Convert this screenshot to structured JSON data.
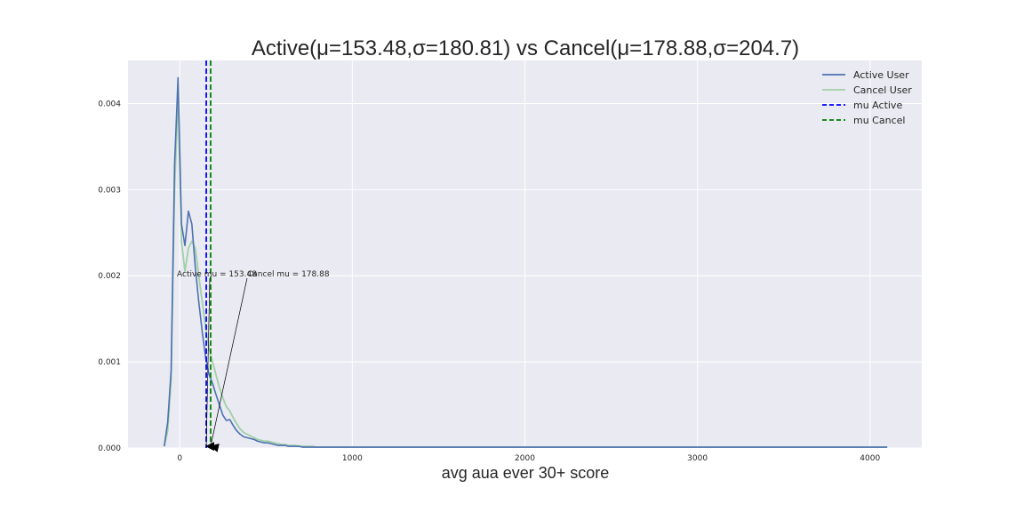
{
  "chart_data": {
    "type": "line",
    "title": "Active(μ=153.48,σ=180.81) vs Cancel(μ=178.88,σ=204.7)",
    "xlabel": "avg aua ever 30+ score",
    "ylabel": "",
    "xlim": [
      -300,
      4300
    ],
    "ylim": [
      0,
      0.0045
    ],
    "xticks": [
      0,
      1000,
      2000,
      3000,
      4000
    ],
    "xtick_labels": [
      "0",
      "1000",
      "2000",
      "3000",
      "4000"
    ],
    "yticks": [
      0,
      0.001,
      0.002,
      0.003,
      0.004
    ],
    "ytick_labels": [
      "0.000",
      "0.001",
      "0.002",
      "0.003",
      "0.004"
    ],
    "grid": true,
    "legend_position": "top-right",
    "colors": {
      "background": "#eaeaf2",
      "grid": "#ffffff",
      "active": "#4c72b0",
      "cancel": "#a1cfa7",
      "mu_active": "#0000ff",
      "mu_cancel": "#008000"
    },
    "series": [
      {
        "name": "Active User",
        "x": [
          -90,
          -70,
          -50,
          -30,
          -10,
          10,
          30,
          50,
          70,
          90,
          110,
          130,
          150,
          170,
          190,
          210,
          230,
          250,
          270,
          290,
          310,
          330,
          350,
          370,
          390,
          410,
          430,
          450,
          470,
          490,
          510,
          530,
          550,
          570,
          590,
          610,
          630,
          650,
          670,
          690,
          710,
          730,
          750,
          770,
          790,
          810,
          830,
          850,
          870,
          890,
          910,
          930,
          950,
          970,
          990,
          1010,
          1030,
          1050,
          1070,
          1090,
          1110,
          1150,
          1200,
          1250,
          1300,
          1350,
          1400,
          1500,
          1600,
          1800,
          2000,
          2500,
          3000,
          3500,
          4000,
          4100
        ],
        "values": [
          2e-05,
          0.0003,
          0.0009,
          0.0033,
          0.0043,
          0.0026,
          0.00235,
          0.00275,
          0.0026,
          0.0021,
          0.0017,
          0.00135,
          0.00105,
          0.00085,
          0.00075,
          0.00062,
          0.0005,
          0.00038,
          0.00032,
          0.00033,
          0.00026,
          0.0002,
          0.00016,
          0.00013,
          0.00012,
          0.00011,
          0.0001,
          8e-05,
          7e-05,
          6e-05,
          6e-05,
          5e-05,
          4e-05,
          3e-05,
          3e-05,
          3e-05,
          2e-05,
          2e-05,
          2e-05,
          2e-05,
          1e-05,
          1e-05,
          1e-05,
          1e-05,
          1e-05,
          1e-05,
          1e-05,
          1e-05,
          1e-05,
          1e-05,
          1e-05,
          1e-05,
          1e-05,
          1e-05,
          1e-05,
          1e-05,
          1e-05,
          1e-05,
          1e-05,
          1e-05,
          1e-05,
          1e-05,
          1e-05,
          1e-05,
          1e-05,
          1e-05,
          1e-05,
          1e-05,
          1e-05,
          1e-05,
          1e-05,
          1e-05,
          1e-05,
          1e-05,
          1e-05,
          1e-05
        ]
      },
      {
        "name": "Cancel User",
        "x": [
          -90,
          -70,
          -50,
          -30,
          -10,
          10,
          30,
          50,
          70,
          90,
          110,
          130,
          150,
          170,
          190,
          210,
          230,
          250,
          270,
          290,
          310,
          330,
          350,
          370,
          390,
          410,
          430,
          450,
          470,
          490,
          510,
          530,
          550,
          570,
          590,
          610,
          630,
          650,
          670,
          690,
          710,
          730,
          750,
          770,
          790,
          810,
          830,
          850,
          870,
          890,
          910,
          930,
          950,
          970,
          990,
          1010,
          1030,
          1050,
          1070,
          1090,
          1110,
          1150,
          1200,
          1250,
          1300,
          1350,
          1400,
          1500,
          1600,
          1800,
          2000,
          2500,
          3000,
          3500,
          4000,
          4100
        ],
        "values": [
          2e-05,
          0.0002,
          0.0008,
          0.003,
          0.0041,
          0.0024,
          0.00205,
          0.00232,
          0.0024,
          0.00232,
          0.002,
          0.0017,
          0.0014,
          0.00115,
          0.001,
          0.00085,
          0.0007,
          0.00058,
          0.00048,
          0.00043,
          0.00035,
          0.00028,
          0.00022,
          0.00018,
          0.00016,
          0.00014,
          0.00012,
          0.0001,
          9e-05,
          8e-05,
          8e-05,
          7e-05,
          6e-05,
          5e-05,
          4e-05,
          4e-05,
          3e-05,
          3e-05,
          3e-05,
          2e-05,
          2e-05,
          2e-05,
          2e-05,
          2e-05,
          1e-05,
          1e-05,
          1e-05,
          1e-05,
          1e-05,
          1e-05,
          1e-05,
          1e-05,
          1e-05,
          1e-05,
          1e-05,
          1e-05,
          1e-05,
          1e-05,
          1e-05,
          1e-05,
          1e-05,
          1e-05,
          1e-05,
          1e-05,
          1e-05,
          1e-05,
          1e-05,
          1e-05,
          1e-05,
          1e-05,
          1e-05,
          1e-05,
          1e-05,
          1e-05,
          1e-05,
          1e-05
        ]
      }
    ],
    "vlines": [
      {
        "name": "mu Active",
        "x": 153.48
      },
      {
        "name": "mu Cancel",
        "x": 178.88
      }
    ],
    "annotations": [
      {
        "text": "Active mu = 153.48",
        "x": 153.48,
        "y": 0.002
      },
      {
        "text": "Cancel mu = 178.88",
        "x": 178.88,
        "y": 0.002
      }
    ]
  }
}
